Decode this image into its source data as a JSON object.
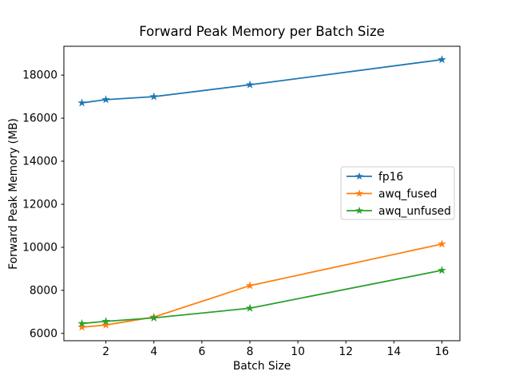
{
  "chart_data": {
    "type": "line",
    "title": "Forward Peak Memory per Batch Size",
    "xlabel": "Batch Size",
    "ylabel": "Forward Peak Memory (MB)",
    "x": [
      1,
      2,
      4,
      8,
      16
    ],
    "series": [
      {
        "name": "fp16",
        "color": "#1f77b4",
        "values": [
          16710,
          16860,
          17000,
          17550,
          18720
        ]
      },
      {
        "name": "awq_fused",
        "color": "#ff7f0e",
        "values": [
          6290,
          6390,
          6760,
          8220,
          10150
        ]
      },
      {
        "name": "awq_unfused",
        "color": "#2ca02c",
        "values": [
          6460,
          6560,
          6720,
          7170,
          8930
        ]
      }
    ],
    "marker": "star",
    "xticks": [
      2,
      4,
      6,
      8,
      10,
      12,
      14,
      16
    ],
    "yticks": [
      6000,
      8000,
      10000,
      12000,
      14000,
      16000,
      18000
    ],
    "xlim": [
      0.25,
      16.75
    ],
    "ylim": [
      5660,
      19340
    ],
    "grid": false,
    "legend_position": "center right",
    "background_color": "#ffffff",
    "spine_color": "#000000",
    "legend_border_color": "#cccccc"
  }
}
